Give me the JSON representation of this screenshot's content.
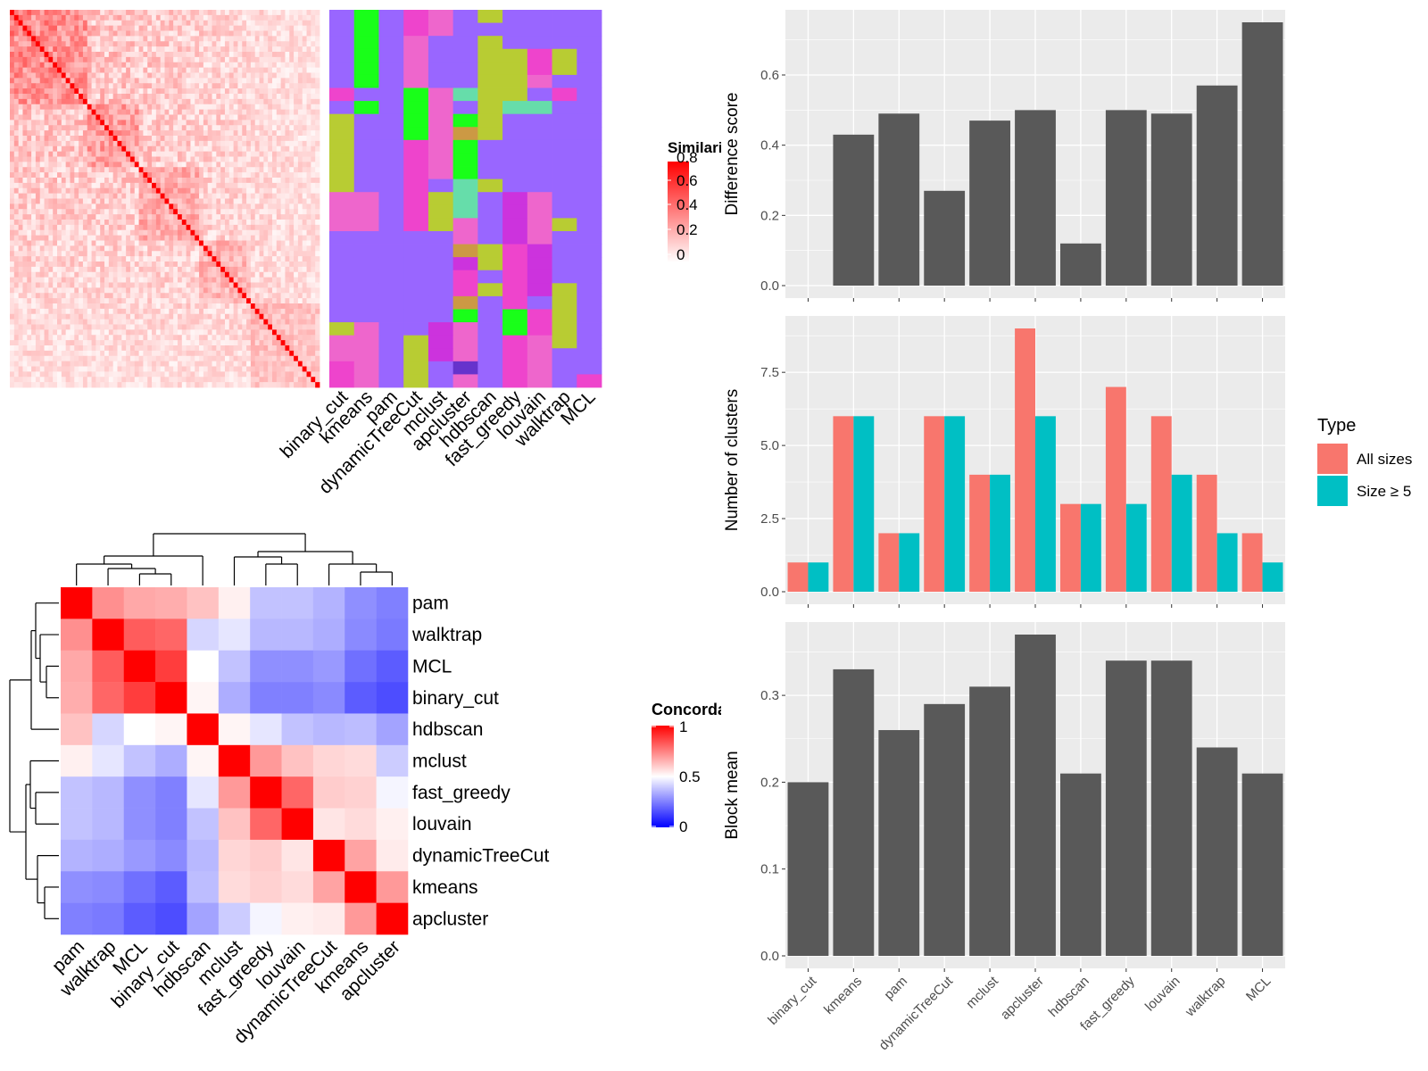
{
  "methods": [
    "binary_cut",
    "kmeans",
    "pam",
    "dynamicTreeCut",
    "mclust",
    "apcluster",
    "hdbscan",
    "fast_greedy",
    "louvain",
    "walktrap",
    "MCL"
  ],
  "similarity_legend": {
    "title": "Similarity",
    "ticks": [
      "0.8",
      "0.6",
      "0.4",
      "0.2",
      "0"
    ]
  },
  "concordance_legend": {
    "title": "Concordance",
    "ticks": [
      "1",
      "0.5",
      "0"
    ]
  },
  "type_legend": {
    "title": "Type",
    "items": [
      "All sizes",
      "Size ≥ 5"
    ],
    "colors": [
      "#F8766D",
      "#00BFC4"
    ]
  },
  "bar_color": "#595959",
  "chart_data": [
    {
      "type": "heatmap",
      "name": "similarity-matrix",
      "n": 72,
      "color_low": "#ffffff",
      "color_high": "#ff0000",
      "range": [
        0,
        0.85
      ]
    },
    {
      "type": "heatmap",
      "name": "cluster-assignment",
      "columns": [
        "binary_cut",
        "kmeans",
        "pam",
        "dynamicTreeCut",
        "mclust",
        "apcluster",
        "hdbscan",
        "fast_greedy",
        "louvain",
        "walktrap",
        "MCL"
      ],
      "palette": [
        "#9966FF",
        "#19FF19",
        "#B8CC33",
        "#EE44CC",
        "#EE66CC",
        "#CC33DD",
        "#66DDAA",
        "#CC9944",
        "#6633CC"
      ],
      "assignments": [
        [
          0,
          1,
          0,
          3,
          4,
          0,
          2,
          0,
          0,
          0,
          0
        ],
        [
          0,
          1,
          0,
          3,
          4,
          0,
          0,
          0,
          0,
          0,
          0
        ],
        [
          0,
          1,
          0,
          4,
          0,
          0,
          2,
          0,
          0,
          0,
          0
        ],
        [
          0,
          1,
          0,
          4,
          0,
          0,
          2,
          2,
          3,
          2,
          0
        ],
        [
          0,
          1,
          0,
          4,
          0,
          0,
          2,
          2,
          3,
          2,
          0
        ],
        [
          0,
          1,
          0,
          4,
          0,
          0,
          2,
          2,
          4,
          0,
          0
        ],
        [
          3,
          0,
          0,
          1,
          4,
          6,
          2,
          2,
          0,
          3,
          0
        ],
        [
          0,
          1,
          0,
          1,
          4,
          0,
          2,
          6,
          6,
          0,
          0
        ],
        [
          2,
          0,
          0,
          1,
          4,
          1,
          2,
          0,
          0,
          0,
          0
        ],
        [
          2,
          0,
          0,
          1,
          4,
          7,
          2,
          0,
          0,
          0,
          0
        ],
        [
          2,
          0,
          0,
          3,
          4,
          1,
          0,
          0,
          0,
          0,
          0
        ],
        [
          2,
          0,
          0,
          3,
          4,
          1,
          0,
          0,
          0,
          0,
          0
        ],
        [
          2,
          0,
          0,
          3,
          4,
          1,
          0,
          0,
          0,
          0,
          0
        ],
        [
          2,
          0,
          0,
          3,
          0,
          6,
          2,
          0,
          0,
          0,
          0
        ],
        [
          4,
          4,
          0,
          3,
          2,
          6,
          0,
          5,
          4,
          0,
          0
        ],
        [
          4,
          4,
          0,
          3,
          2,
          6,
          0,
          5,
          4,
          0,
          0
        ],
        [
          4,
          4,
          0,
          3,
          2,
          4,
          0,
          5,
          4,
          2,
          0
        ],
        [
          0,
          0,
          0,
          0,
          0,
          4,
          0,
          5,
          4,
          0,
          0
        ],
        [
          0,
          0,
          0,
          0,
          0,
          7,
          2,
          3,
          5,
          0,
          0
        ],
        [
          0,
          0,
          0,
          0,
          0,
          5,
          2,
          3,
          5,
          0,
          0
        ],
        [
          0,
          0,
          0,
          0,
          0,
          3,
          0,
          3,
          5,
          0,
          0
        ],
        [
          0,
          0,
          0,
          0,
          0,
          3,
          2,
          3,
          5,
          2,
          0
        ],
        [
          0,
          0,
          0,
          0,
          0,
          7,
          0,
          3,
          0,
          2,
          0
        ],
        [
          0,
          0,
          0,
          0,
          0,
          1,
          0,
          1,
          3,
          2,
          0
        ],
        [
          2,
          4,
          0,
          0,
          5,
          4,
          0,
          1,
          3,
          2,
          0
        ],
        [
          4,
          4,
          0,
          2,
          5,
          4,
          0,
          3,
          4,
          2,
          0
        ],
        [
          4,
          4,
          0,
          2,
          5,
          4,
          0,
          3,
          4,
          0,
          0
        ],
        [
          3,
          4,
          0,
          2,
          0,
          8,
          0,
          3,
          4,
          0,
          0
        ],
        [
          3,
          4,
          0,
          2,
          0,
          4,
          0,
          3,
          4,
          0,
          3
        ]
      ]
    },
    {
      "type": "heatmap",
      "name": "concordance-matrix",
      "order": [
        "pam",
        "walktrap",
        "MCL",
        "binary_cut",
        "hdbscan",
        "mclust",
        "fast_greedy",
        "louvain",
        "dynamicTreeCut",
        "kmeans",
        "apcluster"
      ],
      "range": [
        0,
        1
      ],
      "colors": [
        "#0000ff",
        "#ffffff",
        "#ff0000"
      ],
      "matrix": [
        [
          1.0,
          0.72,
          0.67,
          0.66,
          0.62,
          0.53,
          0.38,
          0.38,
          0.35,
          0.28,
          0.25
        ],
        [
          0.72,
          1.0,
          0.82,
          0.8,
          0.42,
          0.45,
          0.36,
          0.36,
          0.34,
          0.27,
          0.24
        ],
        [
          0.67,
          0.82,
          1.0,
          0.88,
          0.5,
          0.38,
          0.28,
          0.28,
          0.3,
          0.22,
          0.18
        ],
        [
          0.66,
          0.8,
          0.88,
          1.0,
          0.52,
          0.34,
          0.25,
          0.25,
          0.27,
          0.18,
          0.15
        ],
        [
          0.62,
          0.42,
          0.5,
          0.52,
          1.0,
          0.52,
          0.45,
          0.38,
          0.36,
          0.37,
          0.32
        ],
        [
          0.53,
          0.45,
          0.38,
          0.34,
          0.52,
          1.0,
          0.7,
          0.62,
          0.58,
          0.57,
          0.4
        ],
        [
          0.38,
          0.36,
          0.28,
          0.25,
          0.45,
          0.7,
          1.0,
          0.8,
          0.6,
          0.59,
          0.48
        ],
        [
          0.38,
          0.36,
          0.28,
          0.25,
          0.38,
          0.62,
          0.8,
          1.0,
          0.55,
          0.57,
          0.53
        ],
        [
          0.35,
          0.34,
          0.3,
          0.27,
          0.36,
          0.58,
          0.6,
          0.55,
          1.0,
          0.68,
          0.54
        ],
        [
          0.28,
          0.27,
          0.22,
          0.18,
          0.37,
          0.57,
          0.59,
          0.57,
          0.68,
          1.0,
          0.7
        ],
        [
          0.25,
          0.24,
          0.18,
          0.15,
          0.32,
          0.4,
          0.48,
          0.53,
          0.54,
          0.7,
          1.0
        ]
      ]
    },
    {
      "type": "bar",
      "name": "difference-score",
      "categories": [
        "binary_cut",
        "kmeans",
        "pam",
        "dynamicTreeCut",
        "mclust",
        "apcluster",
        "hdbscan",
        "fast_greedy",
        "louvain",
        "walktrap",
        "MCL"
      ],
      "values": [
        0.0,
        0.43,
        0.49,
        0.27,
        0.47,
        0.5,
        0.12,
        0.5,
        0.49,
        0.57,
        0.75
      ],
      "ylabel": "Difference score",
      "ylim": [
        0,
        0.75
      ],
      "yticks": [
        0.0,
        0.2,
        0.4,
        0.6
      ],
      "ytick_labels": [
        "0.0",
        "0.2",
        "0.4",
        "0.6"
      ]
    },
    {
      "type": "bar",
      "name": "number-of-clusters",
      "categories": [
        "binary_cut",
        "kmeans",
        "pam",
        "dynamicTreeCut",
        "mclust",
        "apcluster",
        "hdbscan",
        "fast_greedy",
        "louvain",
        "walktrap",
        "MCL"
      ],
      "series": [
        {
          "name": "All sizes",
          "values": [
            1,
            6,
            2,
            6,
            4,
            9,
            3,
            7,
            6,
            4,
            2
          ]
        },
        {
          "name": "Size ≥ 5",
          "values": [
            1,
            6,
            2,
            6,
            4,
            6,
            3,
            3,
            4,
            2,
            1
          ]
        }
      ],
      "ylabel": "Number of clusters",
      "ylim": [
        0,
        9
      ],
      "yticks": [
        0.0,
        2.5,
        5.0,
        7.5
      ],
      "ytick_labels": [
        "0.0",
        "2.5",
        "5.0",
        "7.5"
      ]
    },
    {
      "type": "bar",
      "name": "block-mean",
      "categories": [
        "binary_cut",
        "kmeans",
        "pam",
        "dynamicTreeCut",
        "mclust",
        "apcluster",
        "hdbscan",
        "fast_greedy",
        "louvain",
        "walktrap",
        "MCL"
      ],
      "values": [
        0.2,
        0.33,
        0.26,
        0.29,
        0.31,
        0.37,
        0.21,
        0.34,
        0.34,
        0.24,
        0.21
      ],
      "ylabel": "Block mean",
      "ylim": [
        0,
        0.37
      ],
      "yticks": [
        0.0,
        0.1,
        0.2,
        0.3
      ],
      "ytick_labels": [
        "0.0",
        "0.1",
        "0.2",
        "0.3"
      ]
    }
  ]
}
